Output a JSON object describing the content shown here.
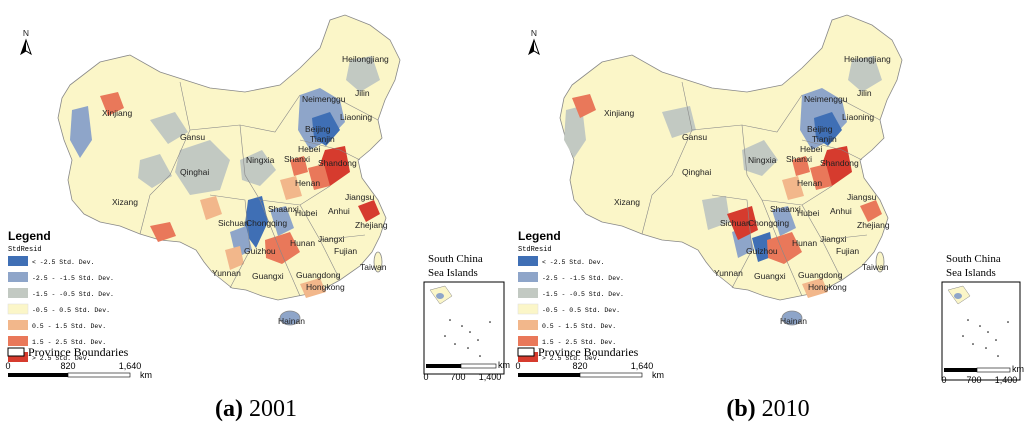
{
  "panels": [
    {
      "id": "a",
      "caption_letter": "(a)",
      "caption_year": "2001",
      "north": "N",
      "provinces": [
        "Heilongjiang",
        "Jilin",
        "Liaoning",
        "Neimenggu",
        "Beijing",
        "Tianjin",
        "Hebei",
        "Shanxi",
        "Shandong",
        "Henan",
        "Xinjiang",
        "Gansu",
        "Ningxia",
        "Qinghai",
        "Xizang",
        "Sichuan",
        "Chongqing",
        "Shaanxi",
        "Hubei",
        "Anhui",
        "Jiangsu",
        "Hunan",
        "Jiangxi",
        "Zhejiang",
        "Guizhou",
        "Yunnan",
        "Guangxi",
        "Guangdong",
        "Fujian",
        "Hongkong",
        "Taiwan",
        "Hainan"
      ],
      "legend": {
        "title": "Legend",
        "field": "StdResid",
        "items": [
          {
            "label": "< -2.5 Std. Dev.",
            "color": "#3f6fb5"
          },
          {
            "label": "-2.5 - -1.5 Std. Dev.",
            "color": "#8ea5c9"
          },
          {
            "label": "-1.5 - -0.5 Std. Dev.",
            "color": "#c2c9c2"
          },
          {
            "label": "-0.5 - 0.5 Std. Dev.",
            "color": "#fbf6c8"
          },
          {
            "label": "0.5 - 1.5 Std. Dev.",
            "color": "#f2b78b"
          },
          {
            "label": "1.5 - 2.5 Std. Dev.",
            "color": "#e9785a"
          },
          {
            "label": "> 2.5 Std. Dev.",
            "color": "#d63b2e"
          }
        ],
        "boundaries_label": "Province Boundaries"
      },
      "scale": {
        "ticks": [
          "0",
          "820",
          "1,640"
        ],
        "unit": "km"
      },
      "inset": {
        "title_line1": "South China",
        "title_line2": "Sea Islands",
        "ticks": [
          "0",
          "700",
          "1,400"
        ],
        "unit": "km"
      }
    },
    {
      "id": "b",
      "caption_letter": "(b)",
      "caption_year": "2010",
      "north": "N",
      "provinces": [
        "Heilongjiang",
        "Jilin",
        "Liaoning",
        "Neimenggu",
        "Beijing",
        "Tianjin",
        "Hebei",
        "Shanxi",
        "Shandong",
        "Henan",
        "Xinjiang",
        "Gansu",
        "Ningxia",
        "Qinghai",
        "Xizang",
        "Sichuan",
        "Chongqing",
        "Shaanxi",
        "Hubei",
        "Anhui",
        "Jiangsu",
        "Hunan",
        "Jiangxi",
        "Zhejiang",
        "Guizhou",
        "Yunnan",
        "Guangxi",
        "Guangdong",
        "Fujian",
        "Hongkong",
        "Taiwan",
        "Hainan"
      ],
      "legend": {
        "title": "Legend",
        "field": "StdResid",
        "items": [
          {
            "label": "< -2.5 Std. Dev.",
            "color": "#3f6fb5"
          },
          {
            "label": "-2.5 - -1.5 Std. Dev.",
            "color": "#8ea5c9"
          },
          {
            "label": "-1.5 - -0.5 Std. Dev.",
            "color": "#c2c9c2"
          },
          {
            "label": "-0.5 - 0.5 Std. Dev.",
            "color": "#fbf6c8"
          },
          {
            "label": "0.5 - 1.5 Std. Dev.",
            "color": "#f2b78b"
          },
          {
            "label": "1.5 - 2.5 Std. Dev.",
            "color": "#e9785a"
          },
          {
            "label": "> 2.5 Std. Dev.",
            "color": "#d63b2e"
          }
        ],
        "boundaries_label": "Province Boundaries"
      },
      "scale": {
        "ticks": [
          "0",
          "820",
          "1,640"
        ],
        "unit": "km"
      },
      "inset": {
        "title_line1": "South China",
        "title_line2": "Sea Islands",
        "ticks": [
          "0",
          "700",
          "1,400"
        ],
        "unit": "km"
      }
    }
  ]
}
